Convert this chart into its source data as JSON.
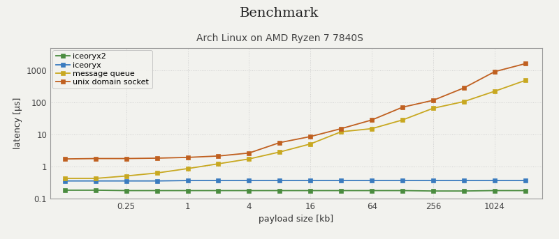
{
  "title": "Benchmark",
  "subtitle": "Arch Linux on AMD Ryzen 7 7840S",
  "xlabel": "payload size [kb]",
  "ylabel": "latency [µs]",
  "background_color": "#f2f2ee",
  "plot_background": "#f2f2ee",
  "x_tick_labels": [
    "0.25",
    "1",
    "4",
    "16",
    "64",
    "256",
    "1024"
  ],
  "x_tick_positions": [
    0.25,
    1,
    4,
    16,
    64,
    256,
    1024
  ],
  "series": [
    {
      "label": "iceoryx2",
      "color": "#4a8c3f",
      "marker": "s",
      "x": [
        0.0625,
        0.125,
        0.25,
        0.5,
        1,
        2,
        4,
        8,
        16,
        32,
        64,
        128,
        256,
        512,
        1024,
        2048
      ],
      "y": [
        0.18,
        0.18,
        0.175,
        0.175,
        0.175,
        0.175,
        0.175,
        0.175,
        0.175,
        0.175,
        0.175,
        0.175,
        0.17,
        0.17,
        0.175,
        0.175
      ]
    },
    {
      "label": "iceoryx",
      "color": "#3a7bbf",
      "marker": "s",
      "x": [
        0.0625,
        0.125,
        0.25,
        0.5,
        1,
        2,
        4,
        8,
        16,
        32,
        64,
        128,
        256,
        512,
        1024,
        2048
      ],
      "y": [
        0.35,
        0.35,
        0.35,
        0.35,
        0.36,
        0.36,
        0.36,
        0.36,
        0.36,
        0.36,
        0.36,
        0.36,
        0.36,
        0.36,
        0.36,
        0.36
      ]
    },
    {
      "label": "message queue",
      "color": "#c8a820",
      "marker": "s",
      "x": [
        0.0625,
        0.125,
        0.25,
        0.5,
        1,
        2,
        4,
        8,
        16,
        32,
        64,
        128,
        256,
        512,
        1024,
        2048
      ],
      "y": [
        0.42,
        0.42,
        0.5,
        0.62,
        0.85,
        1.2,
        1.7,
        2.8,
        5.0,
        12.0,
        15.0,
        28.0,
        65.0,
        105.0,
        220.0,
        480.0
      ]
    },
    {
      "label": "unix domain socket",
      "color": "#c06020",
      "marker": "s",
      "x": [
        0.0625,
        0.125,
        0.25,
        0.5,
        1,
        2,
        4,
        8,
        16,
        32,
        64,
        128,
        256,
        512,
        1024,
        2048
      ],
      "y": [
        1.7,
        1.75,
        1.75,
        1.8,
        1.9,
        2.1,
        2.6,
        5.5,
        8.5,
        15.0,
        28.0,
        70.0,
        115.0,
        280.0,
        900.0,
        1600.0
      ]
    }
  ],
  "xlim": [
    0.045,
    3000
  ],
  "ylim": [
    0.1,
    5000
  ],
  "grid_color": "#cccccc",
  "title_fontsize": 14,
  "subtitle_fontsize": 10,
  "label_fontsize": 9,
  "tick_fontsize": 8.5,
  "legend_fontsize": 8,
  "marker_size": 4,
  "linewidth": 1.3
}
